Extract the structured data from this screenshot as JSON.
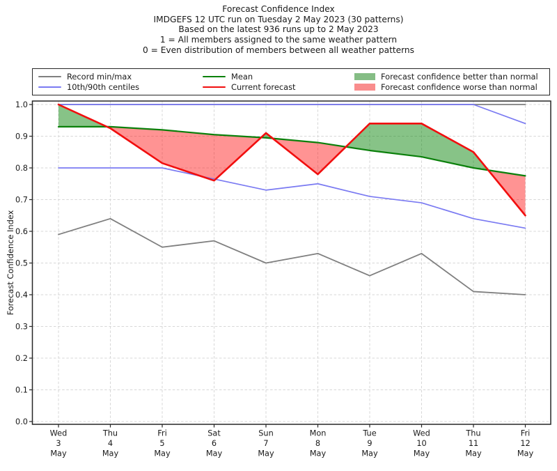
{
  "header": {
    "lines": [
      "Forecast Confidence Index",
      "IMDGEFS 12 UTC run on Tuesday 2 May 2023 (30 patterns)",
      "Based on the latest 936 runs up to 2 May 2023",
      "1 = All members assigned to the same weather pattern",
      "0 = Even distribution of members between all weather patterns"
    ]
  },
  "legend": {
    "items": [
      {
        "label": "Record min/max",
        "swatch": "line",
        "color": "#7f7f7f"
      },
      {
        "label": "10th/90th centiles",
        "swatch": "line",
        "color": "#7a7af2"
      },
      {
        "label": "Mean",
        "swatch": "line",
        "color": "#0b800b"
      },
      {
        "label": "Current forecast",
        "swatch": "line",
        "color": "#f10e0e"
      },
      {
        "label": "Forecast confidence better than normal",
        "swatch": "patch",
        "color": "#85bd85"
      },
      {
        "label": "Forecast confidence worse than normal",
        "swatch": "patch",
        "color": "#f98d8d"
      }
    ]
  },
  "chart_data": {
    "type": "line",
    "title": "Forecast Confidence Index",
    "ylabel": "Forecast Confidence Index",
    "xlabel": "",
    "ylim": [
      0.0,
      1.0
    ],
    "grid": true,
    "legend_position": "top",
    "y_tick_values": [
      0.0,
      0.1,
      0.2,
      0.3,
      0.4,
      0.5,
      0.6,
      0.7,
      0.8,
      0.9,
      1.0
    ],
    "y_tick_labels": [
      "0.0",
      "0.1",
      "0.2",
      "0.3",
      "0.4",
      "0.5",
      "0.6",
      "0.7",
      "0.8",
      "0.9",
      "1.0"
    ],
    "x_dates": [
      [
        "Wed",
        "3",
        "May"
      ],
      [
        "Thu",
        "4",
        "May"
      ],
      [
        "Fri",
        "5",
        "May"
      ],
      [
        "Sat",
        "6",
        "May"
      ],
      [
        "Sun",
        "7",
        "May"
      ],
      [
        "Mon",
        "8",
        "May"
      ],
      [
        "Tue",
        "9",
        "May"
      ],
      [
        "Wed",
        "10",
        "May"
      ],
      [
        "Thu",
        "11",
        "May"
      ],
      [
        "Fri",
        "12",
        "May"
      ]
    ],
    "series": [
      {
        "id": "record-max",
        "name": "Record max",
        "color": "#7f7f7f",
        "width": 1.8,
        "values": [
          1.0,
          1.0,
          1.0,
          1.0,
          1.0,
          1.0,
          1.0,
          1.0,
          1.0,
          1.0
        ]
      },
      {
        "id": "record-min",
        "name": "Record min",
        "color": "#7f7f7f",
        "width": 1.8,
        "values": [
          0.59,
          0.64,
          0.55,
          0.57,
          0.5,
          0.53,
          0.46,
          0.53,
          0.41,
          0.4
        ]
      },
      {
        "id": "centile-90",
        "name": "90th centile",
        "color": "#7a7af2",
        "width": 1.7,
        "values": [
          1.0,
          1.0,
          1.0,
          1.0,
          1.0,
          1.0,
          1.0,
          1.0,
          1.0,
          0.94
        ]
      },
      {
        "id": "centile-10",
        "name": "10th centile",
        "color": "#7a7af2",
        "width": 1.7,
        "values": [
          0.8,
          0.8,
          0.8,
          0.765,
          0.73,
          0.75,
          0.71,
          0.69,
          0.64,
          0.61
        ]
      },
      {
        "id": "mean",
        "name": "Mean",
        "color": "#0b800b",
        "width": 2.2,
        "values": [
          0.93,
          0.93,
          0.92,
          0.905,
          0.895,
          0.88,
          0.855,
          0.835,
          0.8,
          0.775
        ]
      },
      {
        "id": "forecast",
        "name": "Current forecast",
        "color": "#f10e0e",
        "width": 2.6,
        "values": [
          1.0,
          0.925,
          0.815,
          0.76,
          0.91,
          0.78,
          0.94,
          0.94,
          0.85,
          0.65
        ]
      }
    ],
    "fill_between": {
      "upper": "forecast",
      "lower": "mean",
      "better_color": "rgba(0,128,0,0.47)",
      "worse_color": "rgba(255,16,16,0.45)"
    }
  }
}
